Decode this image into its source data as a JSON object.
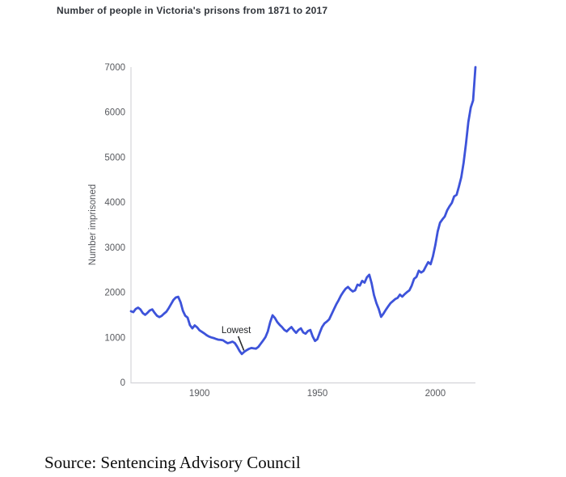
{
  "page": {
    "title": "Number of people in Victoria's prisons from 1871 to 2017",
    "source": "Source: Sentencing Advisory Council"
  },
  "chart_data": {
    "type": "line",
    "title": "Number of people in Victoria's prisons from 1871 to 2017",
    "xlabel": "",
    "ylabel": "Number imprisoned",
    "xlim": [
      1871,
      2017
    ],
    "ylim": [
      0,
      7000
    ],
    "xticks": [
      1900,
      1950,
      2000
    ],
    "yticks": [
      0,
      1000,
      2000,
      3000,
      4000,
      5000,
      6000,
      7000
    ],
    "grid": false,
    "legend": "none",
    "line_color": "#3d53da",
    "axis_color": "#d4d5d9",
    "tick_text_color": "#57595e",
    "annotation": {
      "label": "Lowest",
      "x": 1918,
      "y": 630
    },
    "series": [
      {
        "name": "Number imprisoned",
        "points": [
          [
            1871,
            1580
          ],
          [
            1872,
            1560
          ],
          [
            1873,
            1630
          ],
          [
            1874,
            1660
          ],
          [
            1875,
            1620
          ],
          [
            1876,
            1540
          ],
          [
            1877,
            1500
          ],
          [
            1878,
            1545
          ],
          [
            1879,
            1600
          ],
          [
            1880,
            1620
          ],
          [
            1881,
            1545
          ],
          [
            1882,
            1480
          ],
          [
            1883,
            1450
          ],
          [
            1884,
            1475
          ],
          [
            1885,
            1525
          ],
          [
            1886,
            1570
          ],
          [
            1887,
            1650
          ],
          [
            1888,
            1740
          ],
          [
            1889,
            1830
          ],
          [
            1890,
            1885
          ],
          [
            1891,
            1900
          ],
          [
            1892,
            1780
          ],
          [
            1893,
            1590
          ],
          [
            1894,
            1480
          ],
          [
            1895,
            1440
          ],
          [
            1896,
            1270
          ],
          [
            1897,
            1200
          ],
          [
            1898,
            1265
          ],
          [
            1899,
            1225
          ],
          [
            1900,
            1160
          ],
          [
            1901,
            1125
          ],
          [
            1902,
            1090
          ],
          [
            1903,
            1050
          ],
          [
            1904,
            1020
          ],
          [
            1905,
            1000
          ],
          [
            1906,
            985
          ],
          [
            1907,
            965
          ],
          [
            1908,
            950
          ],
          [
            1909,
            945
          ],
          [
            1910,
            935
          ],
          [
            1911,
            900
          ],
          [
            1912,
            870
          ],
          [
            1913,
            885
          ],
          [
            1914,
            905
          ],
          [
            1915,
            875
          ],
          [
            1916,
            795
          ],
          [
            1917,
            700
          ],
          [
            1918,
            630
          ],
          [
            1919,
            680
          ],
          [
            1920,
            715
          ],
          [
            1921,
            745
          ],
          [
            1922,
            765
          ],
          [
            1923,
            755
          ],
          [
            1924,
            750
          ],
          [
            1925,
            790
          ],
          [
            1926,
            860
          ],
          [
            1927,
            930
          ],
          [
            1928,
            1005
          ],
          [
            1929,
            1130
          ],
          [
            1930,
            1340
          ],
          [
            1931,
            1490
          ],
          [
            1932,
            1430
          ],
          [
            1933,
            1340
          ],
          [
            1934,
            1280
          ],
          [
            1935,
            1230
          ],
          [
            1936,
            1165
          ],
          [
            1937,
            1130
          ],
          [
            1938,
            1185
          ],
          [
            1939,
            1230
          ],
          [
            1940,
            1160
          ],
          [
            1941,
            1100
          ],
          [
            1942,
            1165
          ],
          [
            1943,
            1200
          ],
          [
            1944,
            1110
          ],
          [
            1945,
            1080
          ],
          [
            1946,
            1140
          ],
          [
            1947,
            1165
          ],
          [
            1948,
            1020
          ],
          [
            1949,
            920
          ],
          [
            1950,
            960
          ],
          [
            1951,
            1100
          ],
          [
            1952,
            1230
          ],
          [
            1953,
            1310
          ],
          [
            1954,
            1350
          ],
          [
            1955,
            1400
          ],
          [
            1956,
            1510
          ],
          [
            1957,
            1620
          ],
          [
            1958,
            1730
          ],
          [
            1959,
            1825
          ],
          [
            1960,
            1930
          ],
          [
            1961,
            2010
          ],
          [
            1962,
            2080
          ],
          [
            1963,
            2120
          ],
          [
            1964,
            2060
          ],
          [
            1965,
            2020
          ],
          [
            1966,
            2045
          ],
          [
            1967,
            2170
          ],
          [
            1968,
            2150
          ],
          [
            1969,
            2255
          ],
          [
            1970,
            2215
          ],
          [
            1971,
            2335
          ],
          [
            1972,
            2390
          ],
          [
            1973,
            2200
          ],
          [
            1974,
            1940
          ],
          [
            1975,
            1760
          ],
          [
            1976,
            1630
          ],
          [
            1977,
            1455
          ],
          [
            1978,
            1525
          ],
          [
            1979,
            1610
          ],
          [
            1980,
            1685
          ],
          [
            1981,
            1760
          ],
          [
            1982,
            1805
          ],
          [
            1983,
            1850
          ],
          [
            1984,
            1875
          ],
          [
            1985,
            1950
          ],
          [
            1986,
            1905
          ],
          [
            1987,
            1960
          ],
          [
            1988,
            2005
          ],
          [
            1989,
            2045
          ],
          [
            1990,
            2150
          ],
          [
            1991,
            2300
          ],
          [
            1992,
            2345
          ],
          [
            1993,
            2480
          ],
          [
            1994,
            2440
          ],
          [
            1995,
            2475
          ],
          [
            1996,
            2575
          ],
          [
            1997,
            2670
          ],
          [
            1998,
            2625
          ],
          [
            1999,
            2805
          ],
          [
            2000,
            3050
          ],
          [
            2001,
            3350
          ],
          [
            2002,
            3545
          ],
          [
            2003,
            3620
          ],
          [
            2004,
            3685
          ],
          [
            2005,
            3820
          ],
          [
            2006,
            3910
          ],
          [
            2007,
            3985
          ],
          [
            2008,
            4130
          ],
          [
            2009,
            4165
          ],
          [
            2010,
            4350
          ],
          [
            2011,
            4555
          ],
          [
            2012,
            4880
          ],
          [
            2013,
            5300
          ],
          [
            2014,
            5780
          ],
          [
            2015,
            6100
          ],
          [
            2016,
            6260
          ],
          [
            2017,
            7000
          ]
        ]
      }
    ]
  }
}
